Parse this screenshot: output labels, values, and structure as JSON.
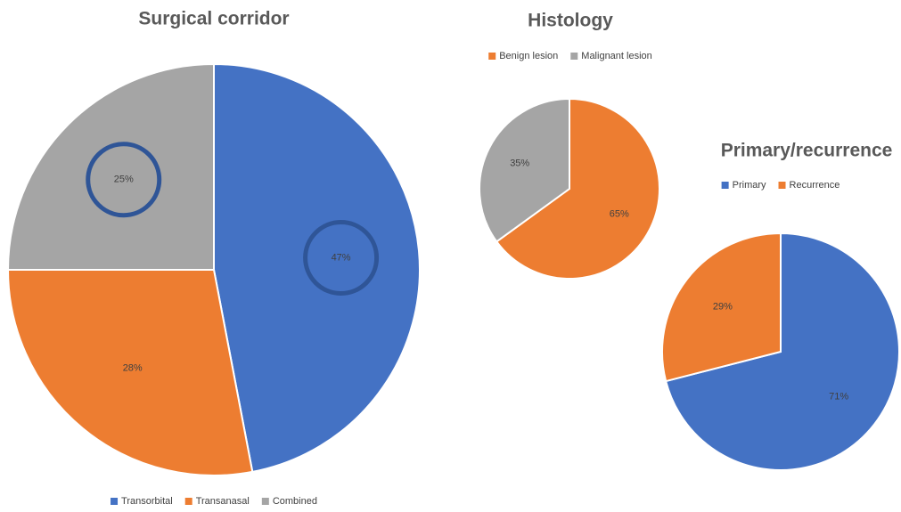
{
  "chart_data": [
    {
      "type": "pie",
      "title": "Surgical corridor",
      "categories": [
        "Transorbital",
        "Transanasal",
        "Combined"
      ],
      "values": [
        47,
        28,
        25
      ],
      "value_labels": [
        "47%",
        "28%",
        "25%"
      ],
      "colors": [
        "#4472c4",
        "#ed7d31",
        "#a5a5a5"
      ],
      "legend": "bottom"
    },
    {
      "type": "pie",
      "title": "Histology",
      "categories": [
        "Benign lesion",
        "Malignant lesion"
      ],
      "values": [
        65,
        35
      ],
      "value_labels": [
        "65%",
        "35%"
      ],
      "colors": [
        "#ed7d31",
        "#a5a5a5"
      ],
      "legend": "top"
    },
    {
      "type": "pie",
      "title": "Primary/recurrence",
      "categories": [
        "Primary",
        "Recurrence"
      ],
      "values": [
        71,
        29
      ],
      "value_labels": [
        "71%",
        "29%"
      ],
      "colors": [
        "#4472c4",
        "#ed7d31"
      ],
      "legend": "top"
    }
  ]
}
